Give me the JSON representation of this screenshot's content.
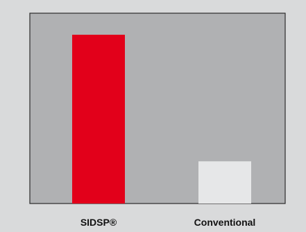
{
  "chart_data": {
    "type": "bar",
    "categories": [
      "SIDSP®",
      "Conventional"
    ],
    "values": [
      100,
      25
    ],
    "ylim": [
      0,
      100
    ],
    "grid": false,
    "legend": "none"
  },
  "colors": {
    "page_background": "#d9dadb",
    "plot_background": "#b0b1b3",
    "plot_border": "#2b2b2b",
    "bar_colors": [
      "#e2001a",
      "#e6e7e8"
    ]
  }
}
